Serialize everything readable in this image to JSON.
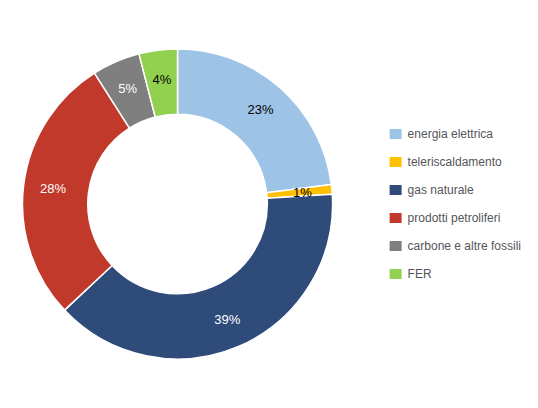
{
  "chart_data": {
    "type": "pie",
    "categories": [
      "energia elettrica",
      "teleriscaldamento",
      "gas naturale",
      "prodotti petroliferi",
      "carbone e altre fossili",
      "FER"
    ],
    "values": [
      23,
      1,
      39,
      28,
      5,
      4
    ],
    "value_labels": [
      "23%",
      "1%",
      "39%",
      "28%",
      "5%",
      "4%"
    ],
    "colors": [
      "#9DC3E6",
      "#FFC000",
      "#2E4B7A",
      "#C0392B",
      "#7F7F7F",
      "#92D050"
    ],
    "data_labels": true,
    "legend": "right"
  }
}
